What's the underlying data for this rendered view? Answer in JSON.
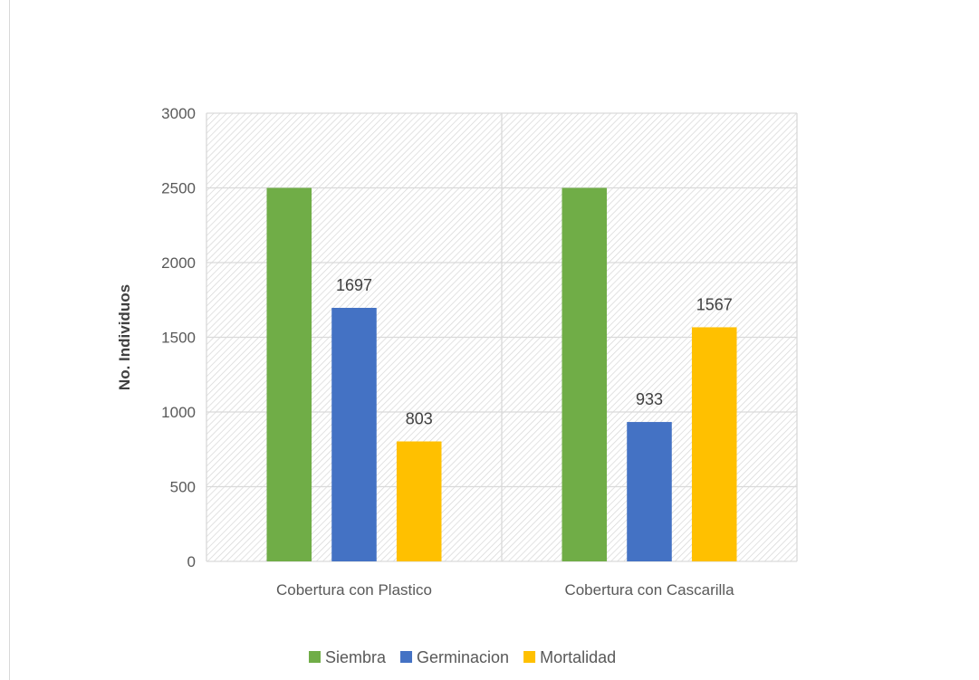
{
  "chart_data": {
    "type": "bar",
    "title": "",
    "xlabel": "",
    "ylabel": "No. Individuos",
    "ylim": [
      0,
      3000
    ],
    "yticks": [
      0,
      500,
      1000,
      1500,
      2000,
      2500,
      3000
    ],
    "categories": [
      "Cobertura con Plastico",
      "Cobertura con Cascarilla"
    ],
    "series": [
      {
        "name": "Siembra",
        "values": [
          2500,
          2500
        ],
        "color": "#70ad47",
        "show_labels": false
      },
      {
        "name": "Germinacion",
        "values": [
          1697,
          933
        ],
        "color": "#4472c4",
        "show_labels": true
      },
      {
        "name": "Mortalidad",
        "values": [
          803,
          1567
        ],
        "color": "#ffc000",
        "show_labels": true
      }
    ],
    "grid": true,
    "plot_background": "diagonal hatch",
    "legend_position": "bottom"
  }
}
